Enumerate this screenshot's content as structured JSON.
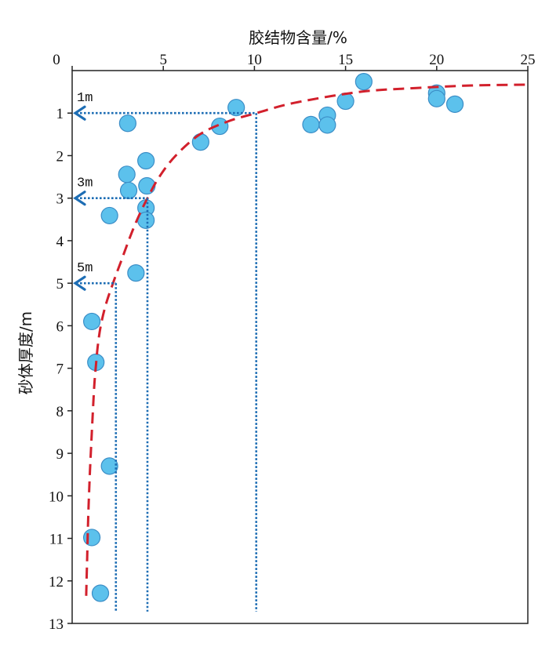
{
  "chart_data": {
    "type": "scatter",
    "xlabel": "胶结物含量/%",
    "ylabel": "砂体厚度/m",
    "xlim": [
      0,
      25
    ],
    "ylim": [
      0,
      13
    ],
    "xticks": [
      0,
      5,
      10,
      15,
      20,
      25
    ],
    "yticks": [
      1,
      2,
      3,
      4,
      5,
      6,
      7,
      8,
      9,
      10,
      11,
      12,
      13
    ],
    "grid": false,
    "points": [
      {
        "x": 16,
        "y": 0.26
      },
      {
        "x": 20,
        "y": 0.53
      },
      {
        "x": 20,
        "y": 0.66
      },
      {
        "x": 21,
        "y": 0.79
      },
      {
        "x": 15,
        "y": 0.72
      },
      {
        "x": 9,
        "y": 0.87
      },
      {
        "x": 3.05,
        "y": 1.24
      },
      {
        "x": 8.1,
        "y": 1.31
      },
      {
        "x": 13.1,
        "y": 1.27
      },
      {
        "x": 14,
        "y": 1.05
      },
      {
        "x": 14,
        "y": 1.28
      },
      {
        "x": 7.05,
        "y": 1.68
      },
      {
        "x": 4.05,
        "y": 2.12
      },
      {
        "x": 3,
        "y": 2.44
      },
      {
        "x": 4.1,
        "y": 2.71
      },
      {
        "x": 3.1,
        "y": 2.82
      },
      {
        "x": 4.05,
        "y": 3.23
      },
      {
        "x": 4.05,
        "y": 3.52
      },
      {
        "x": 2.05,
        "y": 3.41
      },
      {
        "x": 3.5,
        "y": 4.76
      },
      {
        "x": 1.08,
        "y": 5.9
      },
      {
        "x": 1.3,
        "y": 6.86
      },
      {
        "x": 2.05,
        "y": 9.3
      },
      {
        "x": 1.08,
        "y": 10.98
      },
      {
        "x": 1.55,
        "y": 12.29
      }
    ],
    "fit_curve": {
      "x": [
        0.77,
        0.82,
        0.88,
        0.97,
        1.08,
        1.2,
        1.29,
        1.4,
        1.57,
        1.85,
        2.24,
        2.67,
        3.1,
        3.57,
        4.13,
        4.78,
        5.68,
        7.01,
        8.52,
        10.11,
        12.18,
        15.79,
        18.89,
        21.9,
        25
      ],
      "y": [
        12.35,
        11.5,
        10.5,
        9.5,
        8.5,
        7.5,
        7.0,
        6.5,
        6.0,
        5.5,
        5.0,
        4.5,
        4.0,
        3.5,
        3.0,
        2.5,
        2.0,
        1.5,
        1.2,
        1.0,
        0.76,
        0.5,
        0.41,
        0.35,
        0.33
      ]
    },
    "guides": [
      {
        "label": "1m",
        "y": 1,
        "x": 10.1
      },
      {
        "label": "3m",
        "y": 3,
        "x": 4.13
      },
      {
        "label": "5m",
        "y": 5,
        "x": 2.4
      }
    ],
    "guide_end_y": 12.72,
    "colors": {
      "point_fill": "#5cc1ec",
      "point_stroke": "#3b8dc6",
      "curve": "#d2202c",
      "guide": "#1d6db4",
      "axis": "#222222"
    }
  }
}
